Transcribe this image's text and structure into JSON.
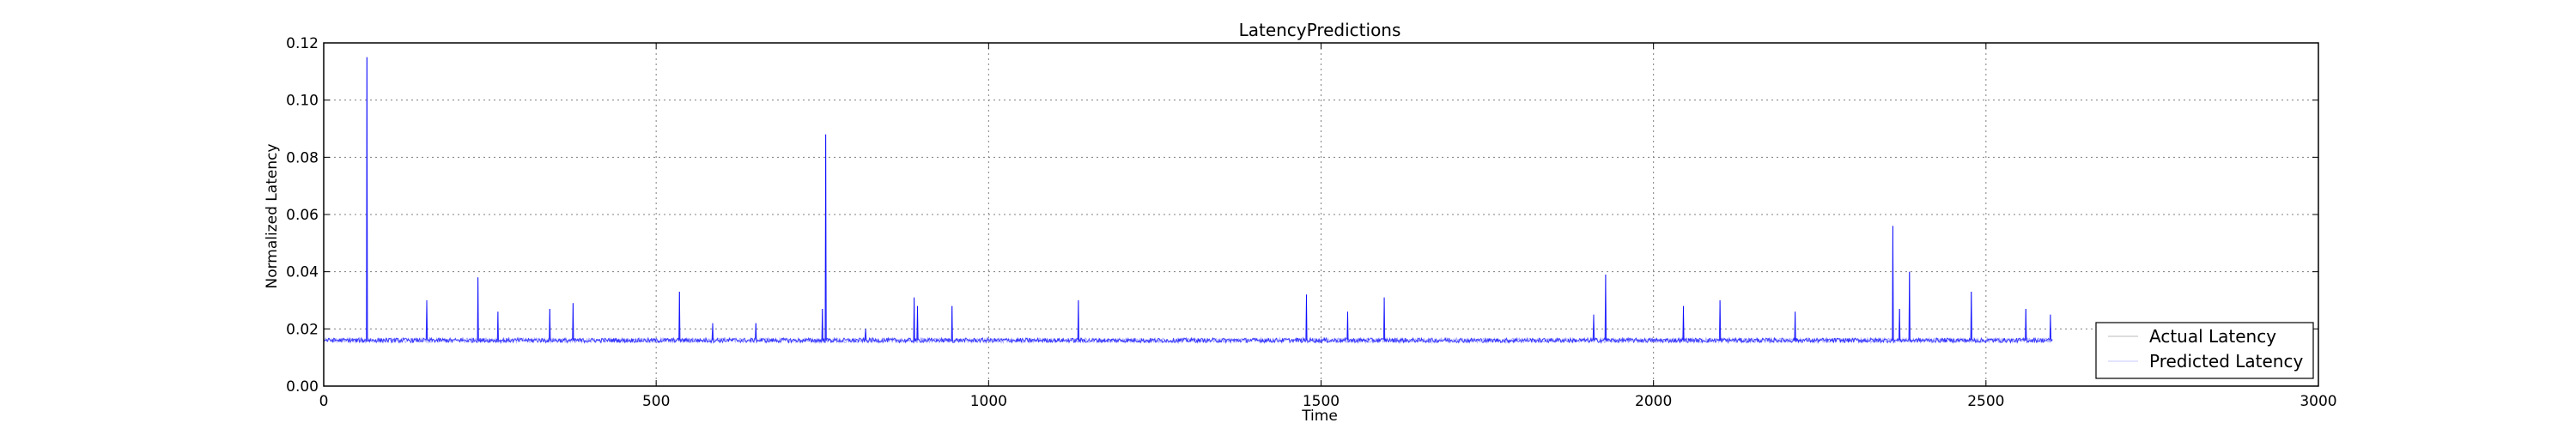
{
  "chart_data": {
    "type": "line",
    "title": "LatencyPredictions",
    "xlabel": "Time",
    "ylabel": "Normalized Latency",
    "xlim": [
      0,
      3000
    ],
    "ylim": [
      0,
      0.12
    ],
    "x_ticks": [
      0,
      500,
      1000,
      1500,
      2000,
      2500,
      3000
    ],
    "y_ticks": [
      0.0,
      0.02,
      0.04,
      0.06,
      0.08,
      0.1,
      0.12
    ],
    "x_tick_labels": [
      "0",
      "500",
      "1000",
      "1500",
      "2000",
      "2500",
      "3000"
    ],
    "y_tick_labels": [
      "0.00",
      "0.02",
      "0.04",
      "0.06",
      "0.08",
      "0.10",
      "0.12"
    ],
    "grid": true,
    "legend_position": "lower-right",
    "series": [
      {
        "name": "Actual Latency",
        "color": "#0000ff",
        "baseline": 0.016,
        "x_range": [
          0,
          2600
        ],
        "spikes": [
          {
            "x": 65,
            "y": 0.115
          },
          {
            "x": 155,
            "y": 0.03
          },
          {
            "x": 232,
            "y": 0.038
          },
          {
            "x": 262,
            "y": 0.026
          },
          {
            "x": 340,
            "y": 0.027
          },
          {
            "x": 375,
            "y": 0.029
          },
          {
            "x": 535,
            "y": 0.033
          },
          {
            "x": 585,
            "y": 0.022
          },
          {
            "x": 650,
            "y": 0.022
          },
          {
            "x": 750,
            "y": 0.027
          },
          {
            "x": 755,
            "y": 0.088
          },
          {
            "x": 815,
            "y": 0.02
          },
          {
            "x": 888,
            "y": 0.031
          },
          {
            "x": 893,
            "y": 0.028
          },
          {
            "x": 945,
            "y": 0.028
          },
          {
            "x": 1135,
            "y": 0.03
          },
          {
            "x": 1478,
            "y": 0.032
          },
          {
            "x": 1540,
            "y": 0.026
          },
          {
            "x": 1595,
            "y": 0.031
          },
          {
            "x": 1910,
            "y": 0.025
          },
          {
            "x": 1928,
            "y": 0.039
          },
          {
            "x": 2045,
            "y": 0.028
          },
          {
            "x": 2100,
            "y": 0.03
          },
          {
            "x": 2213,
            "y": 0.026
          },
          {
            "x": 2360,
            "y": 0.056
          },
          {
            "x": 2370,
            "y": 0.027
          },
          {
            "x": 2385,
            "y": 0.04
          },
          {
            "x": 2478,
            "y": 0.033
          },
          {
            "x": 2560,
            "y": 0.027
          },
          {
            "x": 2597,
            "y": 0.025
          }
        ]
      },
      {
        "name": "Predicted Latency",
        "color": "#9999ff",
        "baseline": 0.016,
        "x_range": [
          0,
          2600
        ]
      }
    ]
  }
}
